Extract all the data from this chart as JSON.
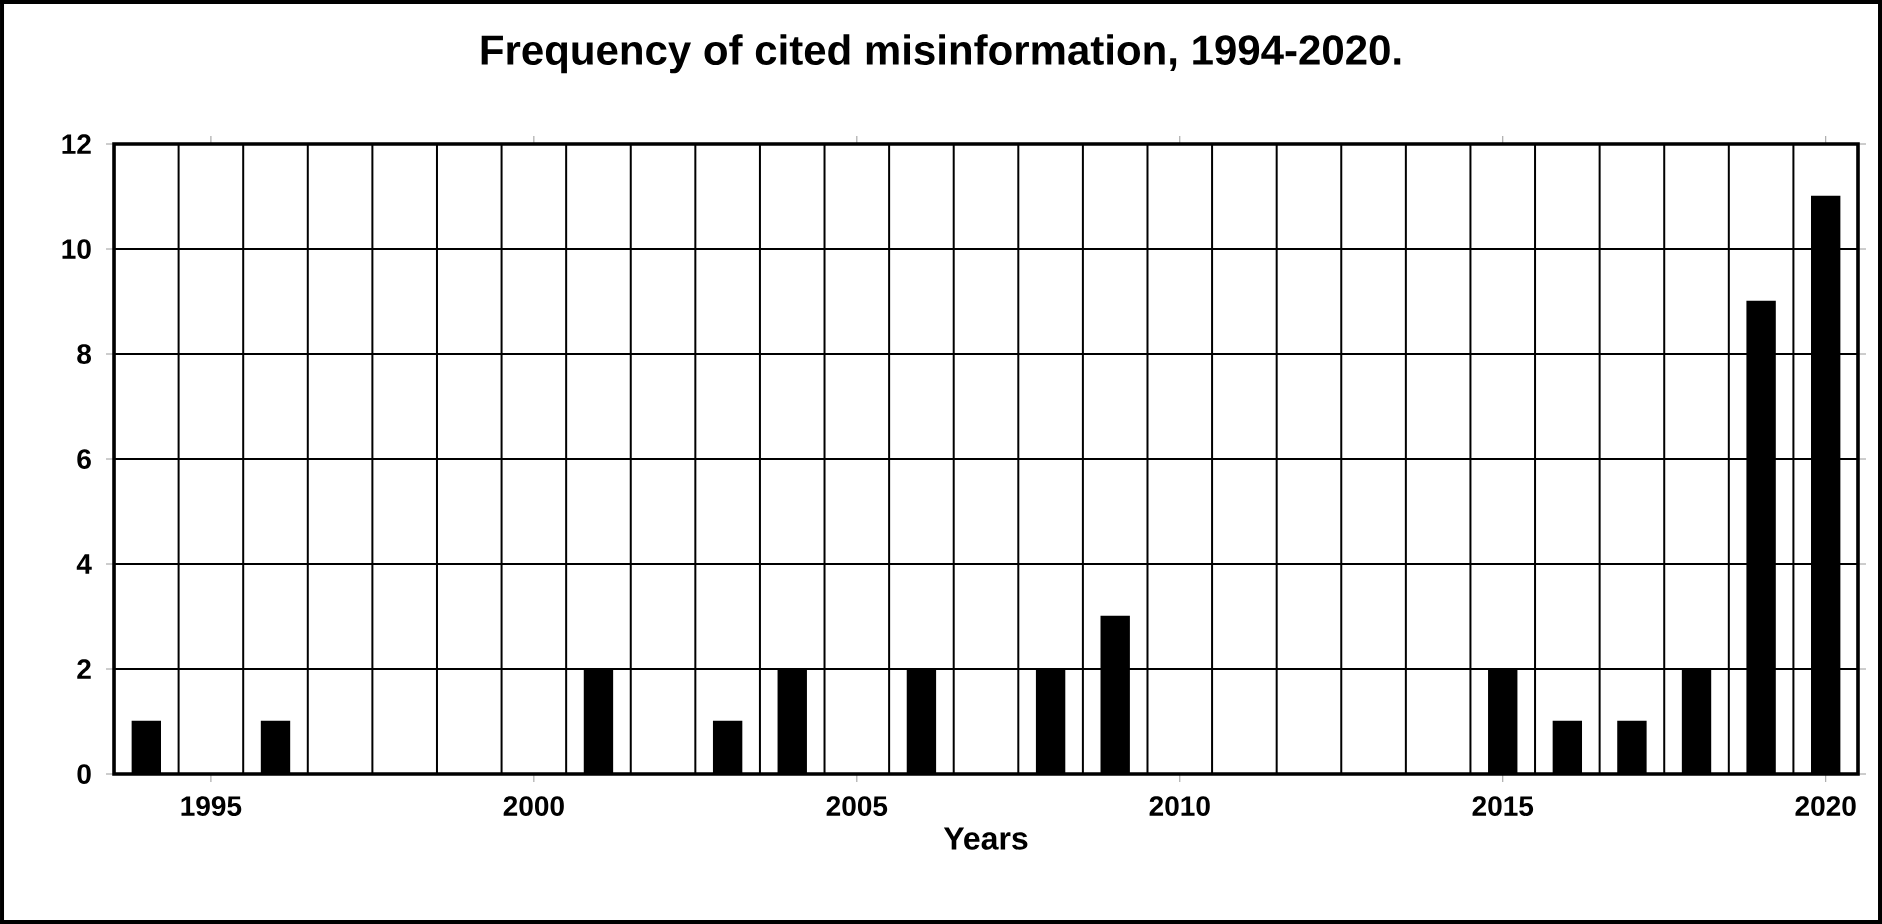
{
  "chart_data": {
    "type": "bar",
    "title": "Frequency of cited misinformation, 1994-2020.",
    "xlabel": "Years",
    "x": [
      1994,
      1996,
      2001,
      2003,
      2004,
      2006,
      2008,
      2009,
      2015,
      2016,
      2017,
      2018,
      2019,
      2020
    ],
    "values": [
      1,
      1,
      2,
      1,
      2,
      2,
      2,
      3,
      2,
      1,
      1,
      2,
      9,
      11
    ],
    "color": "#000000",
    "xlim": [
      1993.5,
      2020.5
    ],
    "xticks": [
      1995,
      2000,
      2005,
      2010,
      2015,
      2020
    ],
    "ylim": [
      0,
      12
    ],
    "yticks": [
      0,
      2,
      4,
      6,
      8,
      10,
      12
    ],
    "grid": true
  }
}
